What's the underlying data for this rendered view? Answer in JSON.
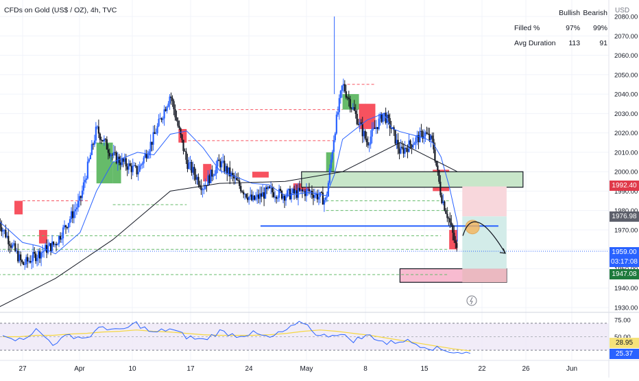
{
  "header": {
    "title": "CFDs on Gold (US$ / OZ), 4h, TVC",
    "currency": "USD"
  },
  "stats": {
    "col_bull": "Bullish",
    "col_bear": "Bearish",
    "rows": [
      {
        "label": "Filled %",
        "bull": "97%",
        "bear": "99%"
      },
      {
        "label": "Avg Duration",
        "bull": "113",
        "bear": "91"
      }
    ]
  },
  "price_tags": {
    "upper": "1992.40",
    "mid": "1976.98",
    "last": "1959.00",
    "countdown": "03:17:08",
    "support": "1947.08",
    "rsi_ma": "28.95",
    "rsi": "25.37"
  },
  "colors": {
    "up": "#2962ff",
    "down": "#131722",
    "ma_blue": "#2962ff",
    "ma_black": "#131722",
    "fvg_green": "#66bb6a",
    "fvg_red": "#f7525f",
    "zone_green": "#c8e6c9",
    "zone_pink": "#f8bbd0",
    "rsi_line": "#2962ff",
    "rsi_ma": "#f5d742",
    "last_price": "#2962ff",
    "upper_tag": "#e0394a",
    "support_tag": "#1e7a3c"
  },
  "chart_data": {
    "type": "line",
    "title": "CFDs on Gold (US$ / OZ), 4h, TVC",
    "xlabel": "",
    "ylabel": "USD",
    "x_ticks": [
      "27",
      "Apr",
      "10",
      "17",
      "24",
      "May",
      "8",
      "15",
      "22",
      "26",
      "Jun"
    ],
    "y_ticks": [
      1930,
      1940,
      1950,
      1960,
      1970,
      1980,
      1990,
      2000,
      2010,
      2020,
      2030,
      2040,
      2050,
      2060,
      2070,
      2080
    ],
    "ylim": [
      1928,
      2085
    ],
    "series": [
      {
        "x": [
          "Mar 24",
          "Mar 27",
          "Mar 29",
          "Mar 31",
          "Apr 3",
          "Apr 5",
          "Apr 7",
          "Apr 10",
          "Apr 12",
          "Apr 14",
          "Apr 16",
          "Apr 18",
          "Apr 20",
          "Apr 24",
          "Apr 26",
          "Apr 28",
          "May 1",
          "May 3",
          "May 4",
          "May 5",
          "May 8",
          "May 10",
          "May 11",
          "May 12",
          "May 15",
          "May 16",
          "May 17",
          "May 18",
          "May 19",
          "May 19"
        ],
        "values": [
          1975,
          1952,
          1958,
          1963,
          1985,
          2022,
          2008,
          2000,
          2018,
          2040,
          2005,
          1992,
          2005,
          1985,
          1990,
          1988,
          1990,
          1985,
          2020,
          2045,
          2015,
          2030,
          2022,
          2010,
          2020,
          2015,
          1988,
          1975,
          1958,
          1959
        ]
      },
      {
        "x": [
          "Mar 24",
          "Mar 31",
          "Apr 7",
          "Apr 14",
          "Apr 20",
          "Apr 28",
          "May 5",
          "May 12",
          "May 19"
        ],
        "values": [
          1930,
          1945,
          1965,
          1990,
          1994,
          1995,
          2000,
          2015,
          2000
        ]
      }
    ],
    "levels": [
      1992.4,
      1976.98,
      1959.0,
      1947.08
    ],
    "rsi": {
      "ylim": [
        20,
        80
      ],
      "ticks": [
        75,
        50,
        25
      ],
      "values": [
        55,
        45,
        60,
        40,
        52,
        48,
        65,
        58,
        70,
        55,
        62,
        50,
        45,
        58,
        52,
        55,
        48,
        60,
        72,
        50,
        55,
        45,
        52,
        40,
        45,
        38,
        32,
        28,
        25.37
      ],
      "ma_values": [
        50,
        50,
        52,
        52,
        54,
        55,
        57,
        58,
        60,
        58,
        57,
        55,
        53,
        52,
        52,
        52,
        53,
        55,
        58,
        60,
        58,
        55,
        52,
        48,
        44,
        40,
        36,
        32,
        28.95
      ]
    },
    "grid": true,
    "legend": "none"
  }
}
